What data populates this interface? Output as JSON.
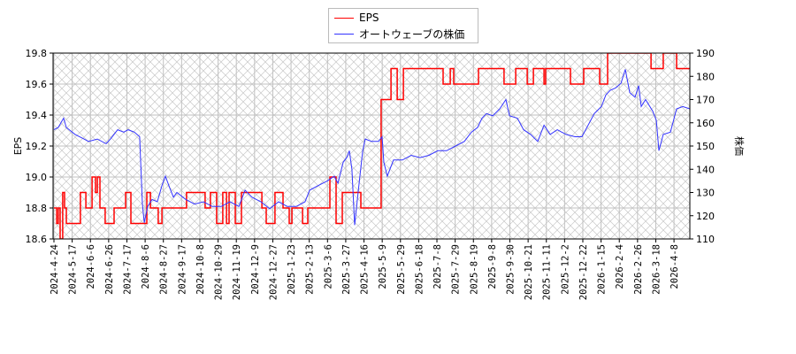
{
  "chart_data": {
    "type": "line",
    "x_unit": "tick index (0 = first date label)",
    "xlabel": "",
    "x_tick_labels": [
      "2024-4-24",
      "2024-5-17",
      "2024-6-6",
      "2024-6-26",
      "2024-7-17",
      "2024-8-6",
      "2024-8-27",
      "2024-9-17",
      "2024-10-8",
      "2024-10-29",
      "2024-11-19",
      "2024-12-9",
      "2024-12-27",
      "2025-1-23",
      "2025-2-13",
      "2025-3-6",
      "2025-3-27",
      "2025-4-16",
      "2025-5-9",
      "2025-5-29",
      "2025-6-18",
      "2025-7-8",
      "2025-7-29",
      "2025-8-19",
      "2025-9-8",
      "2025-9-30",
      "2025-10-21",
      "2025-11-11",
      "2025-12-2",
      "2025-12-22",
      "2026-1-15",
      "2026-2-4",
      "2026-2-26",
      "2026-3-18",
      "2026-4-8"
    ],
    "xlim": [
      0,
      34.87
    ],
    "left_axis": {
      "label": "EPS",
      "ylim": [
        18.6,
        19.8
      ],
      "ticks": [
        "18.6",
        "18.8",
        "19.0",
        "19.2",
        "19.4",
        "19.6",
        "19.8"
      ],
      "tick_values": [
        18.6,
        18.8,
        19.0,
        19.2,
        19.4,
        19.6,
        19.8
      ]
    },
    "right_axis": {
      "label": "株価",
      "ylim": [
        110,
        190
      ],
      "ticks": [
        "110",
        "120",
        "130",
        "140",
        "150",
        "160",
        "170",
        "180",
        "190"
      ],
      "tick_values": [
        110,
        120,
        130,
        140,
        150,
        160,
        170,
        180,
        190
      ]
    },
    "grid": true,
    "legend_position": "top-center",
    "series": [
      {
        "name": "EPS",
        "axis": "left",
        "color": "#ff0000",
        "step": true,
        "points": [
          [
            0,
            18.8
          ],
          [
            0.15,
            18.7
          ],
          [
            0.24,
            18.8
          ],
          [
            0.34,
            18.6
          ],
          [
            0.48,
            18.9
          ],
          [
            0.58,
            18.8
          ],
          [
            0.68,
            18.7
          ],
          [
            1.45,
            18.9
          ],
          [
            1.75,
            18.8
          ],
          [
            2.09,
            19.0
          ],
          [
            2.28,
            18.9
          ],
          [
            2.38,
            19.0
          ],
          [
            2.52,
            18.8
          ],
          [
            2.81,
            18.7
          ],
          [
            3.3,
            18.8
          ],
          [
            3.93,
            18.9
          ],
          [
            4.22,
            18.7
          ],
          [
            5.09,
            18.9
          ],
          [
            5.29,
            18.8
          ],
          [
            5.72,
            18.7
          ],
          [
            5.92,
            18.8
          ],
          [
            7.27,
            18.9
          ],
          [
            8.29,
            18.8
          ],
          [
            8.58,
            18.9
          ],
          [
            8.92,
            18.7
          ],
          [
            9.26,
            18.9
          ],
          [
            9.46,
            18.7
          ],
          [
            9.6,
            18.9
          ],
          [
            9.94,
            18.7
          ],
          [
            10.28,
            18.9
          ],
          [
            11.4,
            18.8
          ],
          [
            11.64,
            18.7
          ],
          [
            12.12,
            18.9
          ],
          [
            12.56,
            18.8
          ],
          [
            12.9,
            18.7
          ],
          [
            13.05,
            18.8
          ],
          [
            13.63,
            18.7
          ],
          [
            13.92,
            18.8
          ],
          [
            15.13,
            19.0
          ],
          [
            15.47,
            18.7
          ],
          [
            15.81,
            18.9
          ],
          [
            16.83,
            18.8
          ],
          [
            17.94,
            19.5
          ],
          [
            18.48,
            19.7
          ],
          [
            18.82,
            19.5
          ],
          [
            19.16,
            19.7
          ],
          [
            21.34,
            19.6
          ],
          [
            21.73,
            19.7
          ],
          [
            21.92,
            19.6
          ],
          [
            23.28,
            19.7
          ],
          [
            24.68,
            19.6
          ],
          [
            25.32,
            19.7
          ],
          [
            25.95,
            19.6
          ],
          [
            26.29,
            19.7
          ],
          [
            26.87,
            19.6
          ],
          [
            26.96,
            19.7
          ],
          [
            28.32,
            19.6
          ],
          [
            29.05,
            19.7
          ],
          [
            29.92,
            19.6
          ],
          [
            30.36,
            19.8
          ],
          [
            32.74,
            19.7
          ],
          [
            33.41,
            19.8
          ],
          [
            34.14,
            19.7
          ],
          [
            34.87,
            19.7
          ]
        ]
      },
      {
        "name": "オートウェーブの株価",
        "axis": "right",
        "color": "#3333ff",
        "step": false,
        "points": [
          [
            0,
            157
          ],
          [
            0.24,
            158
          ],
          [
            0.53,
            162
          ],
          [
            0.68,
            158
          ],
          [
            1.16,
            155
          ],
          [
            1.65,
            153
          ],
          [
            1.89,
            152
          ],
          [
            2.38,
            153
          ],
          [
            2.86,
            151
          ],
          [
            3.1,
            153
          ],
          [
            3.49,
            157
          ],
          [
            3.83,
            156
          ],
          [
            4.07,
            157
          ],
          [
            4.41,
            156
          ],
          [
            4.7,
            154
          ],
          [
            4.85,
            125
          ],
          [
            4.95,
            117
          ],
          [
            5.14,
            124
          ],
          [
            5.38,
            127
          ],
          [
            5.67,
            126
          ],
          [
            5.92,
            133
          ],
          [
            6.11,
            137
          ],
          [
            6.35,
            132
          ],
          [
            6.55,
            128
          ],
          [
            6.74,
            130
          ],
          [
            7.23,
            127
          ],
          [
            7.71,
            125
          ],
          [
            8.2,
            126
          ],
          [
            8.68,
            124
          ],
          [
            9.17,
            124
          ],
          [
            9.65,
            126
          ],
          [
            10.14,
            124
          ],
          [
            10.48,
            131
          ],
          [
            10.86,
            128
          ],
          [
            11.35,
            126
          ],
          [
            11.83,
            123
          ],
          [
            12.32,
            126
          ],
          [
            12.8,
            124
          ],
          [
            13.29,
            124
          ],
          [
            13.77,
            126
          ],
          [
            14.02,
            131
          ],
          [
            14.5,
            133
          ],
          [
            14.99,
            135
          ],
          [
            15.37,
            137
          ],
          [
            15.57,
            134
          ],
          [
            15.86,
            143
          ],
          [
            16.05,
            145
          ],
          [
            16.2,
            148
          ],
          [
            16.34,
            140
          ],
          [
            16.49,
            116
          ],
          [
            16.68,
            130
          ],
          [
            16.93,
            148
          ],
          [
            17.07,
            153
          ],
          [
            17.41,
            152
          ],
          [
            17.8,
            152
          ],
          [
            17.99,
            154
          ],
          [
            18.09,
            143
          ],
          [
            18.28,
            137
          ],
          [
            18.62,
            144
          ],
          [
            19.11,
            144
          ],
          [
            19.59,
            146
          ],
          [
            20.08,
            145
          ],
          [
            20.56,
            146
          ],
          [
            21.05,
            148
          ],
          [
            21.53,
            148
          ],
          [
            22.02,
            150
          ],
          [
            22.5,
            152
          ],
          [
            22.89,
            156
          ],
          [
            23.23,
            158
          ],
          [
            23.47,
            162
          ],
          [
            23.72,
            164
          ],
          [
            24.06,
            163
          ],
          [
            24.44,
            166
          ],
          [
            24.78,
            170
          ],
          [
            24.98,
            163
          ],
          [
            25.41,
            162
          ],
          [
            25.75,
            157
          ],
          [
            26.14,
            155
          ],
          [
            26.53,
            152
          ],
          [
            26.87,
            159
          ],
          [
            27.21,
            155
          ],
          [
            27.6,
            157
          ],
          [
            28.08,
            155
          ],
          [
            28.57,
            154
          ],
          [
            28.95,
            154
          ],
          [
            29.29,
            159
          ],
          [
            29.63,
            164
          ],
          [
            30.02,
            167
          ],
          [
            30.26,
            172
          ],
          [
            30.5,
            174
          ],
          [
            30.79,
            175
          ],
          [
            31.09,
            177
          ],
          [
            31.33,
            183
          ],
          [
            31.57,
            173
          ],
          [
            31.86,
            171
          ],
          [
            32.06,
            176
          ],
          [
            32.2,
            167
          ],
          [
            32.44,
            170
          ],
          [
            32.83,
            165
          ],
          [
            33.03,
            161
          ],
          [
            33.17,
            148
          ],
          [
            33.41,
            155
          ],
          [
            33.8,
            156
          ],
          [
            34.14,
            166
          ],
          [
            34.48,
            167
          ],
          [
            34.87,
            166
          ]
        ]
      }
    ]
  }
}
